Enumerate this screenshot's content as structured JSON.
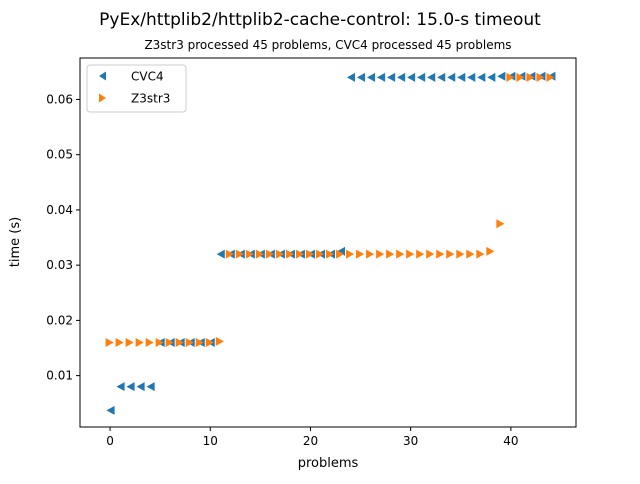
{
  "chart_data": {
    "type": "scatter",
    "title": "PyEx/httplib2/httplib2-cache-control: 15.0-s timeout",
    "subtitle": "Z3str3 processed 45 problems, CVC4 processed 45 problems",
    "xlabel": "problems",
    "ylabel": "time (s)",
    "xlim": [
      -3,
      46.5
    ],
    "ylim": [
      0.0007,
      0.0675
    ],
    "xticks": [
      0,
      10,
      20,
      30,
      40
    ],
    "yticks": [
      0.01,
      0.02,
      0.03,
      0.04,
      0.05,
      0.06
    ],
    "ytick_labels": [
      "0.01",
      "0.02",
      "0.03",
      "0.04",
      "0.05",
      "0.06"
    ],
    "grid": false,
    "legend_position": "upper-left",
    "series": [
      {
        "name": "CVC4",
        "marker": "triangle-left",
        "color": "#1f77b4",
        "x": [
          0,
          1,
          2,
          3,
          4,
          5,
          6,
          7,
          8,
          9,
          10,
          11,
          12,
          13,
          14,
          15,
          16,
          17,
          18,
          19,
          20,
          21,
          22,
          23,
          24,
          25,
          26,
          27,
          28,
          29,
          30,
          31,
          32,
          33,
          34,
          35,
          36,
          37,
          38,
          39,
          40,
          41,
          42,
          43,
          44
        ],
        "y": [
          0.0037,
          0.008,
          0.008,
          0.008,
          0.008,
          0.016,
          0.016,
          0.016,
          0.016,
          0.016,
          0.016,
          0.032,
          0.032,
          0.032,
          0.032,
          0.032,
          0.032,
          0.032,
          0.032,
          0.032,
          0.032,
          0.032,
          0.032,
          0.0325,
          0.064,
          0.064,
          0.064,
          0.064,
          0.064,
          0.064,
          0.064,
          0.064,
          0.064,
          0.064,
          0.064,
          0.064,
          0.064,
          0.064,
          0.064,
          0.0642,
          0.0642,
          0.0642,
          0.0642,
          0.0642,
          0.0642
        ]
      },
      {
        "name": "Z3str3",
        "marker": "triangle-right",
        "color": "#ff7f0e",
        "x": [
          0,
          1,
          2,
          3,
          4,
          5,
          6,
          7,
          8,
          9,
          10,
          11,
          12,
          13,
          14,
          15,
          16,
          17,
          18,
          19,
          20,
          21,
          22,
          23,
          24,
          25,
          26,
          27,
          28,
          29,
          30,
          31,
          32,
          33,
          34,
          35,
          36,
          37,
          38,
          39,
          40,
          41,
          42,
          43,
          44
        ],
        "y": [
          0.016,
          0.016,
          0.016,
          0.016,
          0.016,
          0.016,
          0.016,
          0.016,
          0.016,
          0.016,
          0.016,
          0.0162,
          0.032,
          0.032,
          0.032,
          0.032,
          0.032,
          0.032,
          0.032,
          0.032,
          0.032,
          0.032,
          0.032,
          0.032,
          0.032,
          0.032,
          0.032,
          0.032,
          0.032,
          0.032,
          0.032,
          0.032,
          0.032,
          0.032,
          0.032,
          0.032,
          0.032,
          0.032,
          0.0325,
          0.0375,
          0.064,
          0.064,
          0.064,
          0.064,
          0.064
        ]
      }
    ]
  }
}
